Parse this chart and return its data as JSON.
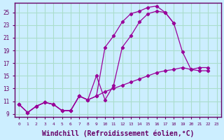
{
  "background_color": "#cceeff",
  "grid_color": "#aaddcc",
  "line_color": "#990099",
  "xlabel": "Windchill (Refroidissement éolien,°C)",
  "xlabel_fontsize": 7,
  "yticks": [
    9,
    11,
    13,
    15,
    17,
    19,
    21,
    23,
    25
  ],
  "xticks": [
    0,
    1,
    2,
    3,
    4,
    5,
    6,
    7,
    8,
    9,
    10,
    11,
    12,
    13,
    14,
    15,
    16,
    17,
    18,
    19,
    20,
    21,
    22,
    23
  ],
  "xlim": [
    -0.5,
    23.5
  ],
  "ylim": [
    8.5,
    26.5
  ],
  "series": [
    {
      "x": [
        0,
        1,
        2,
        3,
        4,
        5,
        6,
        7,
        8,
        9,
        10,
        11,
        12,
        13,
        14,
        15,
        16,
        17,
        18,
        19,
        20,
        21,
        22
      ],
      "y": [
        10.5,
        9.2,
        10.2,
        10.8,
        10.5,
        9.5,
        9.5,
        11.8,
        11.2,
        11.8,
        12.5,
        13.0,
        13.5,
        14.0,
        14.5,
        15.0,
        15.5,
        15.8,
        16.0,
        16.3,
        16.0,
        16.3,
        16.3
      ]
    },
    {
      "x": [
        0,
        1,
        2,
        3,
        4,
        5,
        6,
        7,
        8,
        9,
        10,
        11,
        12,
        13,
        14,
        15,
        16,
        17,
        18,
        19,
        20,
        21,
        22
      ],
      "y": [
        10.5,
        9.2,
        10.2,
        10.8,
        10.5,
        9.5,
        9.5,
        11.8,
        11.2,
        11.8,
        19.5,
        21.3,
        23.5,
        24.8,
        25.2,
        25.8,
        26.0,
        25.0,
        23.3,
        18.8,
        16.0,
        15.8,
        15.8
      ]
    },
    {
      "x": [
        0,
        1,
        2,
        3,
        4,
        5,
        6,
        7,
        8,
        9,
        10,
        11,
        12,
        13,
        14,
        15,
        16,
        17,
        18
      ],
      "y": [
        10.5,
        9.2,
        10.2,
        10.8,
        10.5,
        9.5,
        9.5,
        11.8,
        11.2,
        15.0,
        11.2,
        13.5,
        19.5,
        21.3,
        23.5,
        24.8,
        25.2,
        25.0,
        23.3
      ]
    }
  ]
}
